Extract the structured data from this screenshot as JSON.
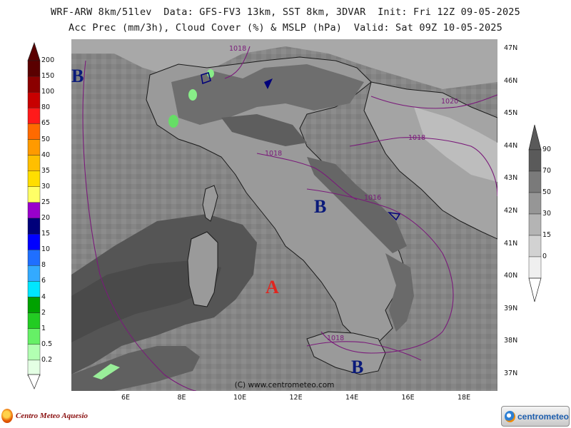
{
  "header": {
    "line1": "WRF-ARW 8km/51lev  Data: GFS-FV3 13km, SST 8km, 3DVAR  Init: Fri 12Z 09-05-2025",
    "line2": "Acc Prec (mm/3h), Cloud Cover (%) & MSLP (hPa)  Valid: Sat 09Z 10-05-2025"
  },
  "map": {
    "lat_labels": [
      "47N",
      "46N",
      "45N",
      "44N",
      "43N",
      "42N",
      "41N",
      "40N",
      "39N",
      "38N",
      "37N"
    ],
    "lon_labels": [
      "6E",
      "8E",
      "10E",
      "12E",
      "14E",
      "16E",
      "18E"
    ],
    "isobars": [
      "1018",
      "1020",
      "1018",
      "1018",
      "1016",
      "1018"
    ],
    "pressure_centers": [
      {
        "label": "B",
        "type": "low"
      },
      {
        "label": "B",
        "type": "low"
      },
      {
        "label": "A",
        "type": "high"
      },
      {
        "label": "B",
        "type": "low"
      }
    ],
    "copyright": "(C) www.centrometeo.com"
  },
  "precip_scale": {
    "labels": [
      "200",
      "150",
      "100",
      "80",
      "65",
      "50",
      "40",
      "35",
      "30",
      "25",
      "20",
      "15",
      "10",
      "8",
      "6",
      "4",
      "2",
      "1",
      "0.5",
      "0.2"
    ],
    "colors": [
      "#5a0000",
      "#8b0000",
      "#c80000",
      "#ff1a1a",
      "#ff6a00",
      "#ff9a00",
      "#ffbf00",
      "#ffde00",
      "#ffff66",
      "#9900cc",
      "#00007a",
      "#0000ff",
      "#1f6fff",
      "#33aaff",
      "#00e6ff",
      "#00a200",
      "#22cc22",
      "#66f066",
      "#b2ffb2",
      "#e4ffe4"
    ]
  },
  "cloud_scale": {
    "labels": [
      "90",
      "70",
      "50",
      "30",
      "15",
      "0"
    ],
    "colors": [
      "#5a5a5a",
      "#7a7a7a",
      "#969696",
      "#b4b4b4",
      "#d2d2d2",
      "#efefef"
    ]
  },
  "footer": {
    "left_brand": "Centro Meteo Aquesio",
    "right_brand": "centrometeo"
  }
}
